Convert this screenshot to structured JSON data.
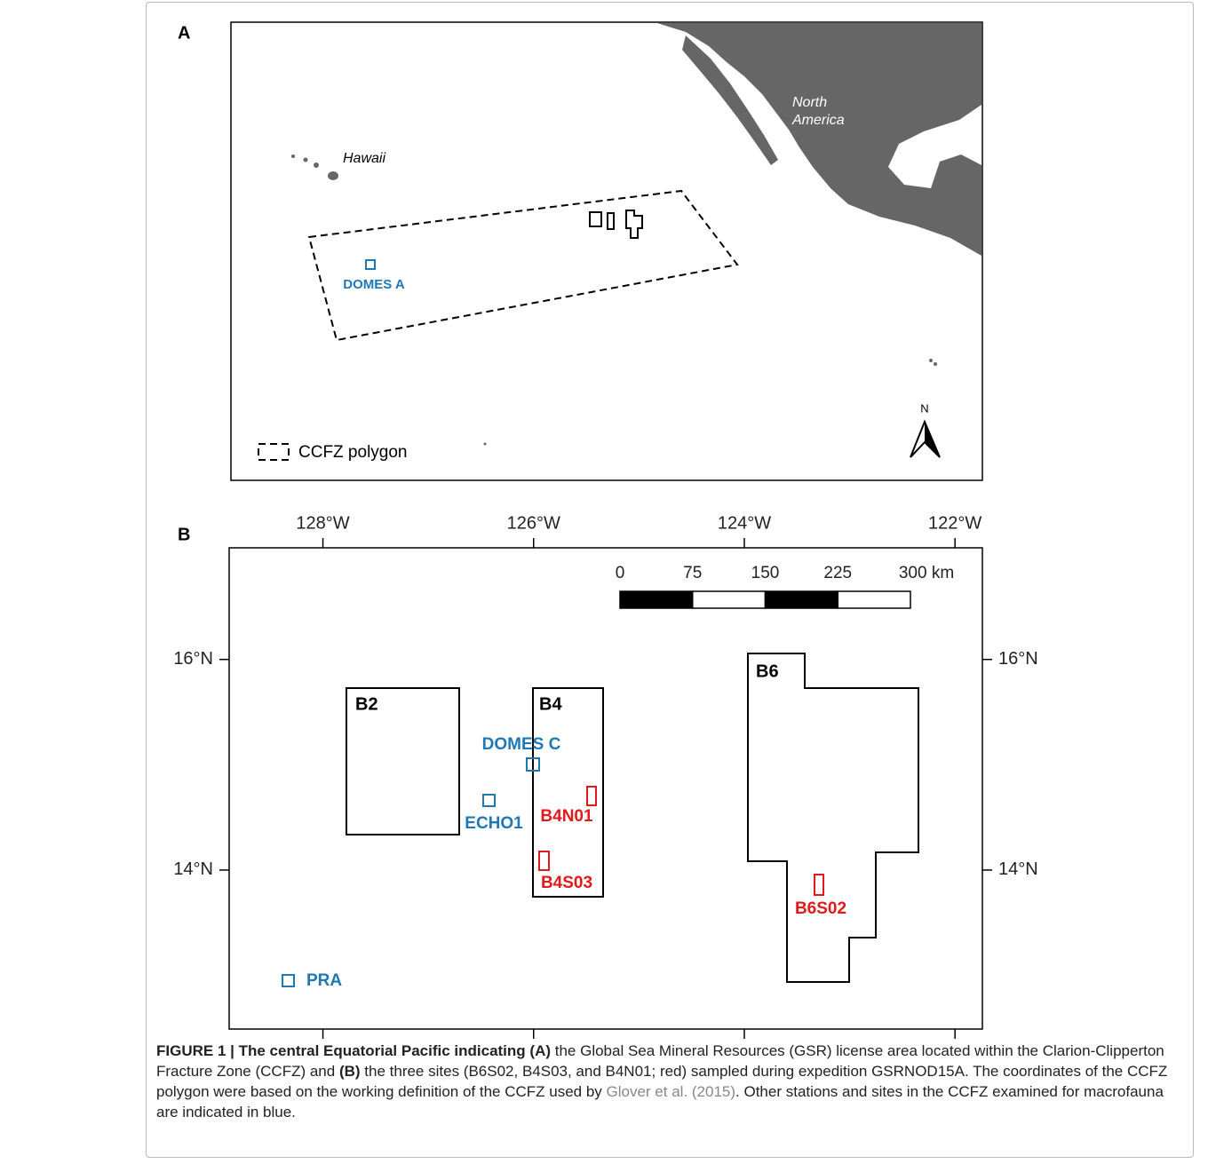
{
  "panel_a": {
    "label": "A",
    "map_labels": {
      "north_america": [
        "North",
        "America"
      ],
      "hawaii": "Hawaii"
    },
    "site": "DOMES A",
    "north_arrow": "N",
    "legend": "CCFZ polygon"
  },
  "panel_b": {
    "label": "B",
    "xlim": [
      -128.89,
      -121.74
    ],
    "ylim": [
      12.49,
      17.06
    ],
    "xticks": [
      {
        "value": -128,
        "label": "128°W"
      },
      {
        "value": -126,
        "label": "126°W"
      },
      {
        "value": -124,
        "label": "124°W"
      },
      {
        "value": -122,
        "label": "122°W"
      }
    ],
    "yticks": [
      {
        "value": 14,
        "label": "14°N"
      },
      {
        "value": 16,
        "label": "16°N"
      }
    ],
    "scale_bar": {
      "ticks": [
        0,
        75,
        150,
        225,
        {
          "value": 300,
          "label": "300 km"
        }
      ]
    },
    "areas": [
      "B2",
      "B4",
      "B6"
    ],
    "sites": [
      "DOMES C",
      "ECHO1",
      "B4N01",
      "B4S03",
      "B6S02",
      "PRA"
    ]
  },
  "caption": [
    {
      "text": "FIGURE 1 | The central Equatorial Pacific indicating (A)",
      "style": "bold"
    },
    {
      "text": " the Global Sea Mineral Resources (GSR) license area located within the Clarion-Clipperton Fracture Zone (CCFZ) and ",
      "style": "plain"
    },
    {
      "text": "(B)",
      "style": "bold"
    },
    {
      "text": " the three sites (B6S02, B4S03, and B4N01; red) sampled during expedition GSRNOD15A. The coordinates of the CCFZ polygon were based on the working definition of the CCFZ used by ",
      "style": "plain"
    },
    {
      "text": "Glover et al. (2015)",
      "style": "link"
    },
    {
      "text": ". Other stations and sites in the CCFZ examined for macrofauna are indicated in blue.",
      "style": "plain"
    }
  ]
}
